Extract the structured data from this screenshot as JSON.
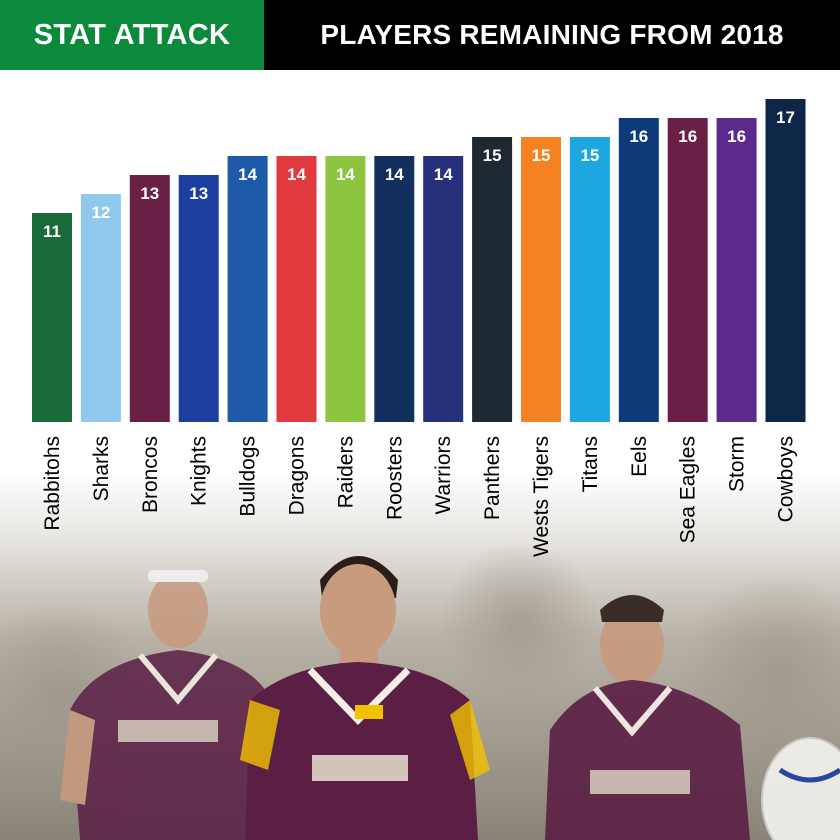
{
  "header": {
    "left_label": "STAT ATTACK",
    "right_label": "PLAYERS REMAINING FROM 2018",
    "left_color": "#0a8a3a",
    "right_color": "#000000"
  },
  "photo": {
    "description_icon": "rugby-players-photo-icon",
    "jersey_color": "#5b1f45"
  },
  "chart_data": {
    "type": "bar",
    "title": "",
    "xlabel": "",
    "ylabel": "",
    "ylim": [
      0,
      17
    ],
    "grid": false,
    "categories": [
      "Rabbitohs",
      "Sharks",
      "Broncos",
      "Knights",
      "Bulldogs",
      "Dragons",
      "Raiders",
      "Roosters",
      "Warriors",
      "Panthers",
      "Wests Tigers",
      "Titans",
      "Eels",
      "Sea Eagles",
      "Storm",
      "Cowboys"
    ],
    "values": [
      11,
      12,
      13,
      13,
      14,
      14,
      14,
      14,
      14,
      15,
      15,
      15,
      16,
      16,
      16,
      17
    ],
    "colors": [
      "#1a6b3a",
      "#8fc8ec",
      "#6a1f45",
      "#1d3fa0",
      "#1e5aa8",
      "#e03a3e",
      "#8cc63f",
      "#12305e",
      "#27307a",
      "#1e2832",
      "#f58220",
      "#1ca7e0",
      "#0f3a7a",
      "#6a1f45",
      "#5b2a8c",
      "#0d2547"
    ]
  }
}
